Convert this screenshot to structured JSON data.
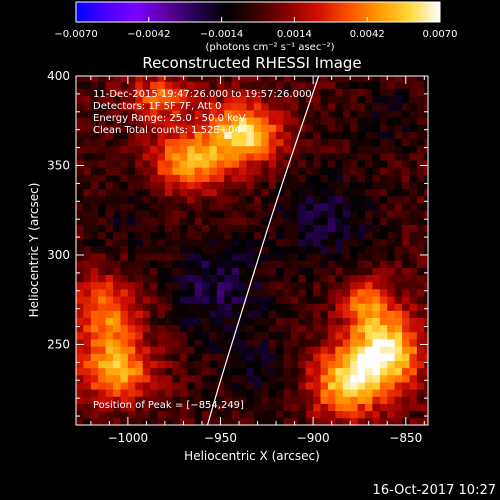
{
  "chart_data": {
    "type": "heatmap",
    "title": "Reconstructed RHESSI Image",
    "xlabel": "Heliocentric X (arcsec)",
    "ylabel": "Heliocentric Y (arcsec)",
    "xlim": [
      -1028,
      -838
    ],
    "ylim": [
      205,
      400
    ],
    "x_ticks": [
      {
        "value": -1000,
        "label": "−1000"
      },
      {
        "value": -950,
        "label": "−950"
      },
      {
        "value": -900,
        "label": "−900"
      },
      {
        "value": -850,
        "label": "−850"
      }
    ],
    "y_ticks": [
      {
        "value": 250,
        "label": "250"
      },
      {
        "value": 300,
        "label": "300"
      },
      {
        "value": 350,
        "label": "350"
      },
      {
        "value": 400,
        "label": "400"
      }
    ],
    "colorbar": {
      "min": -0.007,
      "max": 0.007,
      "ticks": [
        {
          "value": -0.007,
          "label": "−0.0070"
        },
        {
          "value": -0.0042,
          "label": "−0.0042"
        },
        {
          "value": -0.0014,
          "label": "−0.0014"
        },
        {
          "value": 0.0014,
          "label": "0.0014"
        },
        {
          "value": 0.0042,
          "label": "0.0042"
        },
        {
          "value": 0.007,
          "label": "0.0070"
        }
      ],
      "unit_label": "(photons cm⁻² s⁻¹ asec⁻²)"
    },
    "colormap": [
      "#0000ff",
      "#4b00ff",
      "#7a00ff",
      "#5b009c",
      "#24004f",
      "#000000",
      "#3c0000",
      "#8c0000",
      "#d21000",
      "#ff5000",
      "#ff9a00",
      "#ffd83c",
      "#ffffff"
    ],
    "sources": [
      {
        "x": -938,
        "y": 368,
        "peak": 0.0062,
        "sigma_x": 14,
        "sigma_y": 12
      },
      {
        "x": -968,
        "y": 352,
        "peak": 0.0048,
        "sigma_x": 14,
        "sigma_y": 12
      },
      {
        "x": -982,
        "y": 388,
        "peak": 0.0036,
        "sigma_x": 13,
        "sigma_y": 9
      },
      {
        "x": -1012,
        "y": 268,
        "peak": 0.0042,
        "sigma_x": 13,
        "sigma_y": 14
      },
      {
        "x": -1006,
        "y": 236,
        "peak": 0.005,
        "sigma_x": 14,
        "sigma_y": 12
      },
      {
        "x": -862,
        "y": 246,
        "peak": 0.0068,
        "sigma_x": 14,
        "sigma_y": 16
      },
      {
        "x": -884,
        "y": 228,
        "peak": 0.0052,
        "sigma_x": 13,
        "sigma_y": 13
      },
      {
        "x": -872,
        "y": 274,
        "peak": 0.0036,
        "sigma_x": 9,
        "sigma_y": 9
      },
      {
        "x": -952,
        "y": 282,
        "peak": -0.0022,
        "sigma_x": 18,
        "sigma_y": 18
      },
      {
        "x": -894,
        "y": 320,
        "peak": -0.002,
        "sigma_x": 18,
        "sigma_y": 18
      },
      {
        "x": -932,
        "y": 236,
        "peak": -0.0012,
        "sigma_x": 16,
        "sigma_y": 14
      },
      {
        "x": -1000,
        "y": 322,
        "peak": -0.0009,
        "sigma_x": 16,
        "sigma_y": 16
      },
      {
        "x": -860,
        "y": 378,
        "peak": -0.001,
        "sigma_x": 14,
        "sigma_y": 14
      }
    ],
    "limb": [
      {
        "x": -897,
        "y": 400
      },
      {
        "x": -920,
        "y": 330
      },
      {
        "x": -938,
        "y": 270
      },
      {
        "x": -950,
        "y": 230
      },
      {
        "x": -957,
        "y": 205
      }
    ],
    "annotations": [
      "11-Dec-2015 19:47:26.000 to 19:57:26.000",
      "Detectors: 1F 5F 7F, Att 0",
      "Energy Range: 25.0 - 50.0 keV",
      "Clean    Total counts: 1.52E+04"
    ],
    "peak_label": "Position of Peak = [−854,249]"
  },
  "footer": {
    "timestamp": "16-Oct-2017 10:27"
  }
}
